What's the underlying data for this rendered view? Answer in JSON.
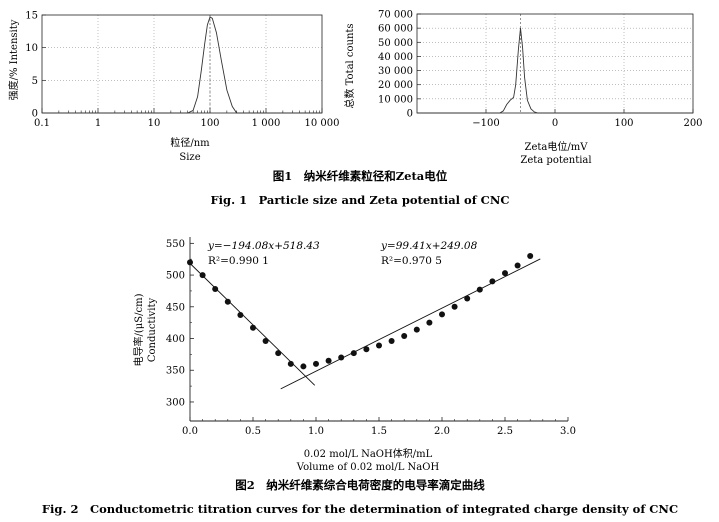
{
  "figure1": {
    "caption_cn": "图1　纳米纤维素粒径和Zeta电位",
    "caption_en": "Fig. 1　Particle size and Zeta potential of CNC"
  },
  "figure2": {
    "caption_cn": "图2　纳米纤维素综合电荷密度的电导率滴定曲线",
    "caption_en": "Fig. 2　Conductometric titration curves for the determination of integrated charge density of CNC"
  },
  "chart_data": [
    {
      "id": "size",
      "type": "line",
      "xlabel": "粒径/nm",
      "xlabel_en": "Size",
      "ylabel": "强度/% Intensity",
      "xscale": "log",
      "xlim": [
        0.1,
        10000
      ],
      "ylim": [
        0,
        15
      ],
      "xticks": [
        0.1,
        1,
        10,
        100,
        1000,
        10000
      ],
      "xtick_labels": [
        "0.1",
        "1",
        "10",
        "100",
        "1 000",
        "10 000"
      ],
      "yticks": [
        0,
        5,
        10,
        15
      ],
      "ytick_labels": [
        "0",
        "5",
        "10",
        "15"
      ],
      "ref_line_x": 100,
      "grid": true,
      "series": [
        {
          "x": [
            0.1,
            40,
            50,
            60,
            70,
            80,
            90,
            100,
            110,
            130,
            160,
            200,
            250,
            300,
            10000
          ],
          "y": [
            0,
            0,
            0.4,
            2.5,
            6.5,
            10.5,
            13.5,
            14.7,
            14.5,
            12.3,
            8.0,
            3.5,
            1.0,
            0,
            0
          ]
        }
      ]
    },
    {
      "id": "zeta",
      "type": "line",
      "xlabel": "Zeta电位/mV",
      "xlabel_en": "Zeta potential",
      "ylabel": "总数 Total counts",
      "xlim": [
        -200,
        200
      ],
      "ylim": [
        0,
        70000
      ],
      "xticks": [
        -100,
        0,
        100,
        200
      ],
      "xtick_labels": [
        "−100",
        "0",
        "100",
        "200"
      ],
      "yticks": [
        0,
        10000,
        20000,
        30000,
        40000,
        50000,
        60000,
        70000
      ],
      "ytick_labels": [
        "0",
        "10 000",
        "20 000",
        "30 000",
        "40 000",
        "50 000",
        "60 000",
        "70 000"
      ],
      "ref_line_x": -50,
      "grid": true,
      "series": [
        {
          "x": [
            -200,
            -80,
            -75,
            -70,
            -65,
            -60,
            -57,
            -53,
            -50,
            -47,
            -44,
            -40,
            -35,
            -30,
            -25,
            -20,
            200
          ],
          "y": [
            0,
            0,
            1500,
            6000,
            9000,
            11000,
            20000,
            45000,
            60000,
            46000,
            25000,
            9000,
            3000,
            800,
            0,
            0,
            0
          ]
        }
      ]
    },
    {
      "id": "titration",
      "type": "scatter",
      "xlabel": "0.02 mol/L NaOH体积/mL",
      "xlabel_en": "Volume of 0.02 mol/L NaOH",
      "ylabel": "电导率/(μS/cm)",
      "ylabel_en": "Conductivity",
      "xlim": [
        0,
        3.0
      ],
      "ylim": [
        270,
        560
      ],
      "xticks": [
        0,
        0.5,
        1.0,
        1.5,
        2.0,
        2.5,
        3.0
      ],
      "xtick_labels": [
        "0.0",
        "0.5",
        "1.0",
        "1.5",
        "2.0",
        "2.5",
        "3.0"
      ],
      "yticks": [
        300,
        350,
        400,
        450,
        500,
        550
      ],
      "ytick_labels": [
        "300",
        "350",
        "400",
        "450",
        "500",
        "550"
      ],
      "points": {
        "x": [
          0,
          0.1,
          0.2,
          0.3,
          0.4,
          0.5,
          0.6,
          0.7,
          0.8,
          0.9,
          1.0,
          1.1,
          1.2,
          1.3,
          1.4,
          1.5,
          1.6,
          1.7,
          1.8,
          1.9,
          2.0,
          2.1,
          2.2,
          2.3,
          2.4,
          2.5,
          2.6,
          2.7
        ],
        "y": [
          520,
          500,
          478,
          458,
          437,
          417,
          396,
          377,
          360,
          356,
          360,
          365,
          370,
          377,
          383,
          389,
          396,
          404,
          414,
          425,
          438,
          450,
          463,
          477,
          490,
          503,
          515,
          530
        ]
      },
      "fits": [
        {
          "equation": "y=−194.08x+518.43",
          "r2": "R²=0.990 1",
          "slope": -194.08,
          "intercept": 518.43,
          "x_range": [
            0,
            0.99
          ]
        },
        {
          "equation": "y=99.41x+249.08",
          "r2": "R²=0.970 5",
          "slope": 99.41,
          "intercept": 249.08,
          "x_range": [
            0.72,
            2.78
          ]
        }
      ]
    }
  ]
}
